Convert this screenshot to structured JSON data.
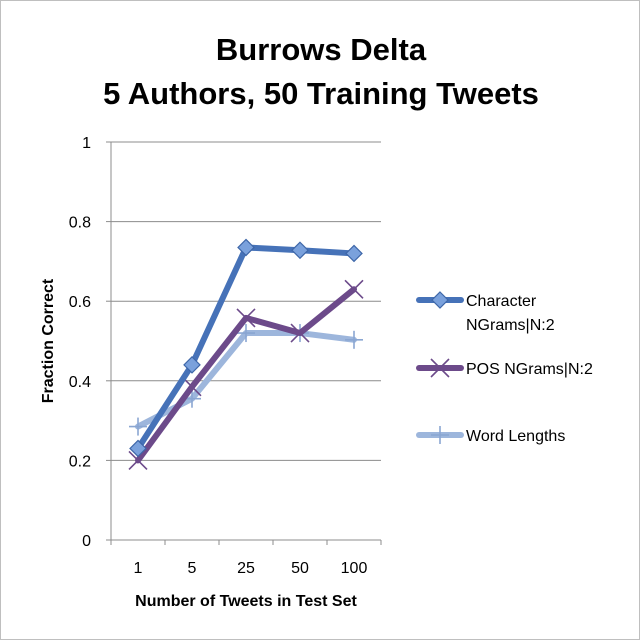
{
  "chart_data": {
    "type": "line",
    "title_lines": [
      "Burrows Delta",
      "5 Authors, 50 Training Tweets"
    ],
    "xlabel": "Number of Tweets in Test Set",
    "ylabel": "Fraction Correct",
    "categories": [
      "1",
      "5",
      "25",
      "50",
      "100"
    ],
    "ylim": [
      0,
      1
    ],
    "yticks": [
      0,
      0.2,
      0.4,
      0.6,
      0.8,
      1
    ],
    "ytick_labels": [
      "0",
      "0.2",
      "0.4",
      "0.6",
      "0.8",
      "1"
    ],
    "grid": true,
    "legend_position": "right",
    "series": [
      {
        "name_lines": [
          "Character",
          "NGrams|N:2"
        ],
        "values": [
          0.23,
          0.44,
          0.735,
          0.728,
          0.72
        ],
        "color": "#4672b8",
        "marker": "diamond-icon"
      },
      {
        "name_lines": [
          "POS NGrams|N:2"
        ],
        "values": [
          0.2,
          0.385,
          0.558,
          0.52,
          0.63
        ],
        "color": "#6c4a8a",
        "marker": "x-icon"
      },
      {
        "name_lines": [
          "Word Lengths"
        ],
        "values": [
          0.285,
          0.355,
          0.52,
          0.52,
          0.503
        ],
        "color": "#9db6dc",
        "marker": "plus-icon"
      }
    ]
  }
}
